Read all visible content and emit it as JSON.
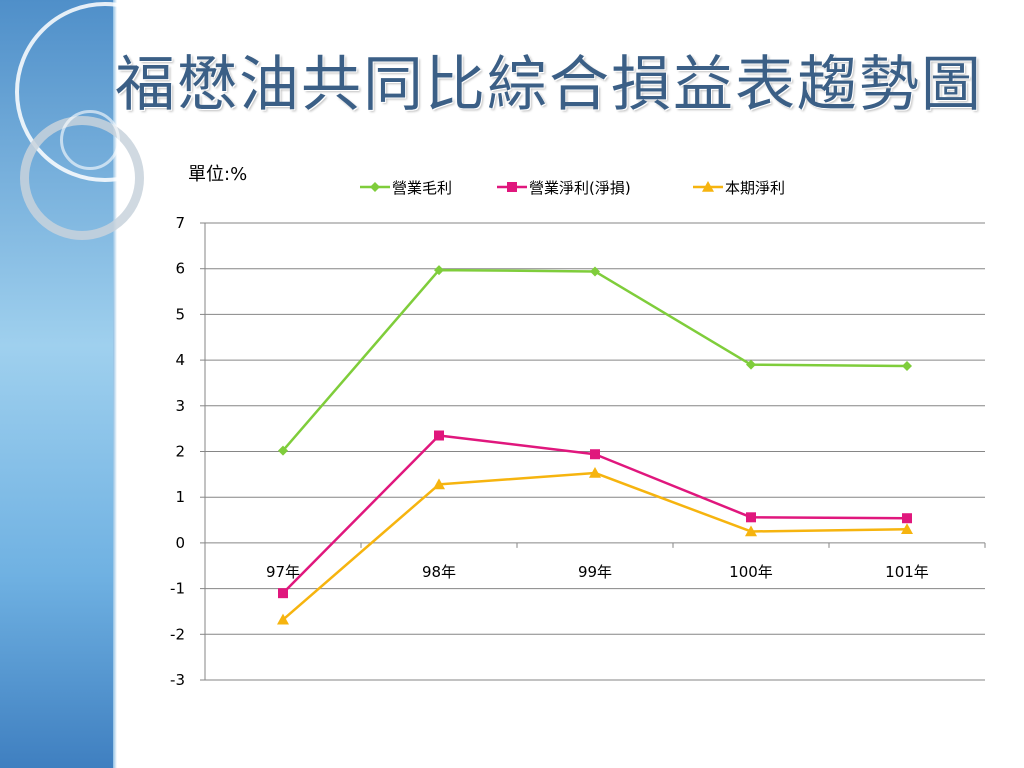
{
  "slide": {
    "title": "福懋油共同比綜合損益表趨勢圖",
    "unit_label": "單位:%"
  },
  "colors": {
    "gross_profit": "#7fcd3b",
    "operating_profit": "#e0177d",
    "net_profit": "#f6b40f",
    "grid": "#868686",
    "title": "#3b5f86"
  },
  "chart_data": {
    "type": "line",
    "title": "",
    "xlabel": "",
    "ylabel": "",
    "categories": [
      "97年",
      "98年",
      "99年",
      "100年",
      "101年"
    ],
    "ylim": [
      -3,
      7
    ],
    "yticks": [
      7,
      6,
      5,
      4,
      3,
      2,
      1,
      0,
      -1,
      -2,
      -3
    ],
    "grid": true,
    "legend_position": "top",
    "series": [
      {
        "name": "營業毛利",
        "marker": "diamond",
        "color": "#7fcd3b",
        "values": [
          2.02,
          5.97,
          5.94,
          3.9,
          3.87
        ]
      },
      {
        "name": "營業淨利(淨損)",
        "marker": "square",
        "color": "#e0177d",
        "values": [
          -1.1,
          2.35,
          1.94,
          0.56,
          0.54
        ]
      },
      {
        "name": "本期淨利",
        "marker": "triangle",
        "color": "#f6b40f",
        "values": [
          -1.68,
          1.28,
          1.53,
          0.25,
          0.3
        ]
      }
    ]
  }
}
